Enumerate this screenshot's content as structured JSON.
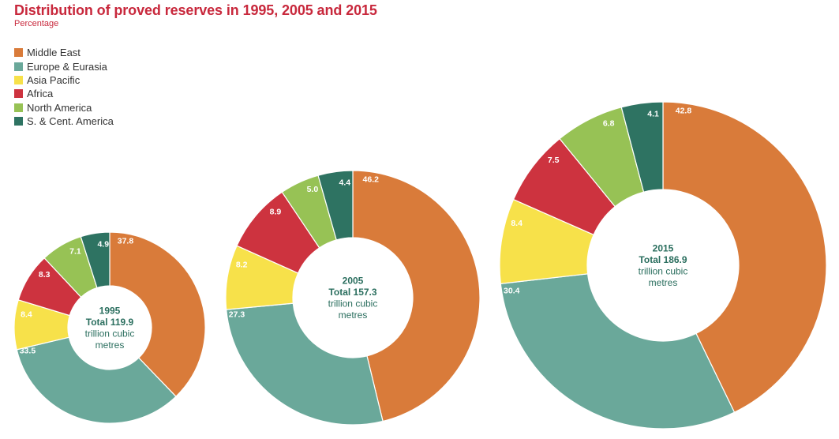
{
  "title": "Distribution of proved reserves in 1995, 2005 and 2015",
  "subtitle": "Percentage",
  "chart_data": {
    "type": "pie",
    "legend": [
      "Middle East",
      "Europe & Eurasia",
      "Asia Pacific",
      "Africa",
      "North America",
      "S. & Cent. America"
    ],
    "colors": [
      "#d97b3a",
      "#6aa89a",
      "#f7e14a",
      "#cd333f",
      "#97c255",
      "#2e7362"
    ],
    "charts": [
      {
        "year": "1995",
        "total_label": "Total 119.9",
        "unit_line1": "trillion cubic",
        "unit_line2": "metres",
        "values": [
          37.8,
          33.5,
          8.4,
          8.3,
          7.1,
          4.9
        ],
        "labels": [
          "37.8",
          "33.5",
          "8.4",
          "8.3",
          "7.1",
          "4.9"
        ]
      },
      {
        "year": "2005",
        "total_label": "Total 157.3",
        "unit_line1": "trillion cubic",
        "unit_line2": "metres",
        "values": [
          46.2,
          27.3,
          8.2,
          8.9,
          5.0,
          4.4
        ],
        "labels": [
          "46.2",
          "27.3",
          "8.2",
          "8.9",
          "5.0",
          "4.4"
        ]
      },
      {
        "year": "2015",
        "total_label": "Total 186.9",
        "unit_line1": "trillion cubic",
        "unit_line2": "metres",
        "values": [
          42.8,
          30.4,
          8.4,
          7.5,
          6.8,
          4.1
        ],
        "labels": [
          "42.8",
          "30.4",
          "8.4",
          "7.5",
          "6.8",
          "4.1"
        ]
      }
    ]
  }
}
